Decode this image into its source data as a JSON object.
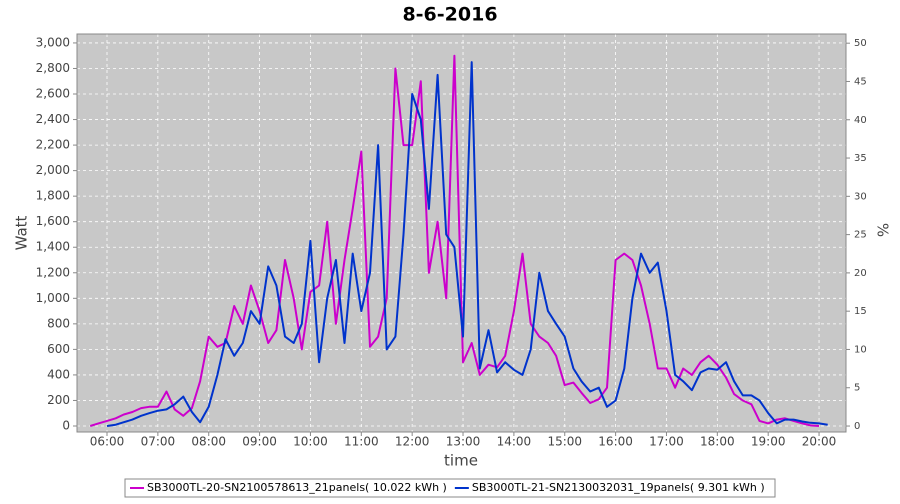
{
  "chart_data": {
    "type": "line",
    "title": "8-6-2016",
    "xlabel": "time",
    "ylabel": "Watt",
    "y2label": "%",
    "x": [
      5.67,
      5.83,
      6,
      6.17,
      6.33,
      6.5,
      6.67,
      6.83,
      7,
      7.17,
      7.33,
      7.5,
      7.67,
      7.83,
      8,
      8.17,
      8.33,
      8.5,
      8.67,
      8.83,
      9,
      9.17,
      9.33,
      9.5,
      9.67,
      9.83,
      10,
      10.17,
      10.33,
      10.5,
      10.67,
      10.83,
      11,
      11.17,
      11.33,
      11.5,
      11.67,
      11.83,
      12,
      12.17,
      12.33,
      12.5,
      12.67,
      12.83,
      13,
      13.17,
      13.33,
      13.5,
      13.67,
      13.83,
      14,
      14.17,
      14.33,
      14.5,
      14.67,
      14.83,
      15,
      15.17,
      15.33,
      15.5,
      15.67,
      15.83,
      16,
      16.17,
      16.33,
      16.5,
      16.67,
      16.83,
      17,
      17.17,
      17.33,
      17.5,
      17.67,
      17.83,
      18,
      18.17,
      18.33,
      18.5,
      18.67,
      18.83,
      19,
      19.17,
      19.33,
      19.5,
      19.67,
      19.83,
      20,
      20.17
    ],
    "series": [
      {
        "name": "SB3000TL-20-SN2100578613_21panels( 10.022 kWh )",
        "color": "#cc00cc",
        "values": [
          0,
          20,
          40,
          60,
          90,
          110,
          140,
          150,
          150,
          270,
          130,
          80,
          140,
          350,
          700,
          620,
          650,
          940,
          800,
          1100,
          900,
          650,
          750,
          1300,
          1000,
          600,
          1050,
          1100,
          1600,
          800,
          1300,
          1700,
          2150,
          620,
          700,
          1000,
          2800,
          2200,
          2200,
          2700,
          1200,
          1600,
          1000,
          2900,
          500,
          650,
          400,
          480,
          460,
          550,
          900,
          1350,
          800,
          700,
          650,
          550,
          320,
          340,
          260,
          180,
          210,
          300,
          1300,
          1350,
          1300,
          1100,
          800,
          450,
          450,
          300,
          450,
          400,
          500,
          550,
          480,
          380,
          250,
          200,
          170,
          40,
          20,
          50,
          60,
          40,
          20,
          5,
          0,
          null
        ]
      },
      {
        "name": "SB3000TL-21-SN2130032031_19panels( 9.301 kWh )",
        "color": "#0033cc",
        "values": [
          null,
          null,
          0,
          10,
          30,
          50,
          80,
          100,
          120,
          130,
          170,
          230,
          110,
          30,
          150,
          400,
          680,
          550,
          650,
          900,
          800,
          1250,
          1100,
          700,
          650,
          800,
          1450,
          500,
          1000,
          1300,
          650,
          1350,
          900,
          1200,
          2200,
          600,
          700,
          1500,
          2600,
          2400,
          1700,
          2750,
          1500,
          1400,
          700,
          2850,
          450,
          750,
          420,
          500,
          440,
          400,
          600,
          1200,
          900,
          800,
          700,
          450,
          350,
          270,
          300,
          150,
          200,
          450,
          1000,
          1350,
          1200,
          1280,
          900,
          400,
          350,
          280,
          420,
          450,
          440,
          500,
          350,
          240,
          240,
          200,
          100,
          20,
          50,
          50,
          35,
          25,
          20,
          10
        ]
      }
    ],
    "xlim": [
      5.41,
      20.53
    ],
    "xticks": [
      {
        "value": 6,
        "label": "06:00"
      },
      {
        "value": 7,
        "label": "07:00"
      },
      {
        "value": 8,
        "label": "08:00"
      },
      {
        "value": 9,
        "label": "09:00"
      },
      {
        "value": 10,
        "label": "10:00"
      },
      {
        "value": 11,
        "label": "11:00"
      },
      {
        "value": 12,
        "label": "12:00"
      },
      {
        "value": 13,
        "label": "13:00"
      },
      {
        "value": 14,
        "label": "14:00"
      },
      {
        "value": 15,
        "label": "15:00"
      },
      {
        "value": 16,
        "label": "16:00"
      },
      {
        "value": 17,
        "label": "17:00"
      },
      {
        "value": 18,
        "label": "18:00"
      },
      {
        "value": 19,
        "label": "19:00"
      },
      {
        "value": 20,
        "label": "20:00"
      }
    ],
    "ylim": [
      -47,
      3070
    ],
    "yticks": [
      0,
      200,
      400,
      600,
      800,
      {
        "value": 1000,
        "label": "1,000"
      },
      {
        "value": 1200,
        "label": "1,200"
      },
      {
        "value": 1400,
        "label": "1,400"
      },
      {
        "value": 1600,
        "label": "1,600"
      },
      {
        "value": 1800,
        "label": "1,800"
      },
      {
        "value": 2000,
        "label": "2,000"
      },
      {
        "value": 2200,
        "label": "2,200"
      },
      {
        "value": 2400,
        "label": "2,400"
      },
      {
        "value": 2600,
        "label": "2,600"
      },
      {
        "value": 2800,
        "label": "2,800"
      },
      {
        "value": 3000,
        "label": "3,000"
      }
    ],
    "y2lim": [
      -0.78,
      51.2
    ],
    "y2ticks": [
      0,
      5,
      10,
      15,
      20,
      25,
      30,
      35,
      40,
      45,
      50
    ],
    "grid": true,
    "legend": "bottom"
  }
}
